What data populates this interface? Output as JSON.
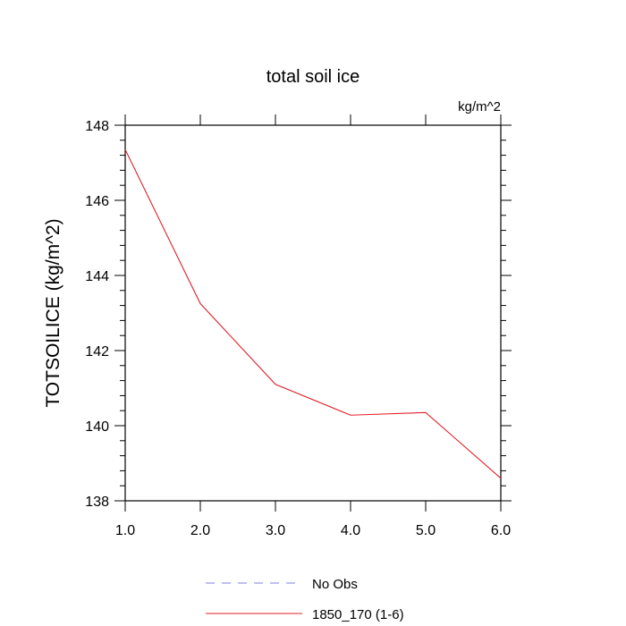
{
  "chart_data": {
    "type": "line",
    "title": "total soil ice",
    "units": "kg/m^2",
    "ylabel": "TOTSOILICE  (kg/m^2)",
    "xlabel": "",
    "xlim": [
      1,
      6
    ],
    "ylim": [
      138,
      148
    ],
    "x_ticks": [
      "1.0",
      "2.0",
      "3.0",
      "4.0",
      "5.0",
      "6.0"
    ],
    "y_ticks": [
      "138",
      "140",
      "142",
      "144",
      "146",
      "148"
    ],
    "series": [
      {
        "name": "1850_170 (1-6)",
        "color": "#e0202a",
        "style": "solid",
        "x": [
          1,
          2,
          3,
          4,
          5,
          6
        ],
        "y": [
          147.35,
          143.25,
          141.1,
          140.28,
          140.35,
          138.6
        ]
      }
    ],
    "legend": [
      {
        "label": "No Obs",
        "color": "#8080e0",
        "style": "dashed"
      },
      {
        "label": "1850_170 (1-6)",
        "color": "#e0202a",
        "style": "solid"
      }
    ],
    "legend_placement": "bottom-center"
  }
}
